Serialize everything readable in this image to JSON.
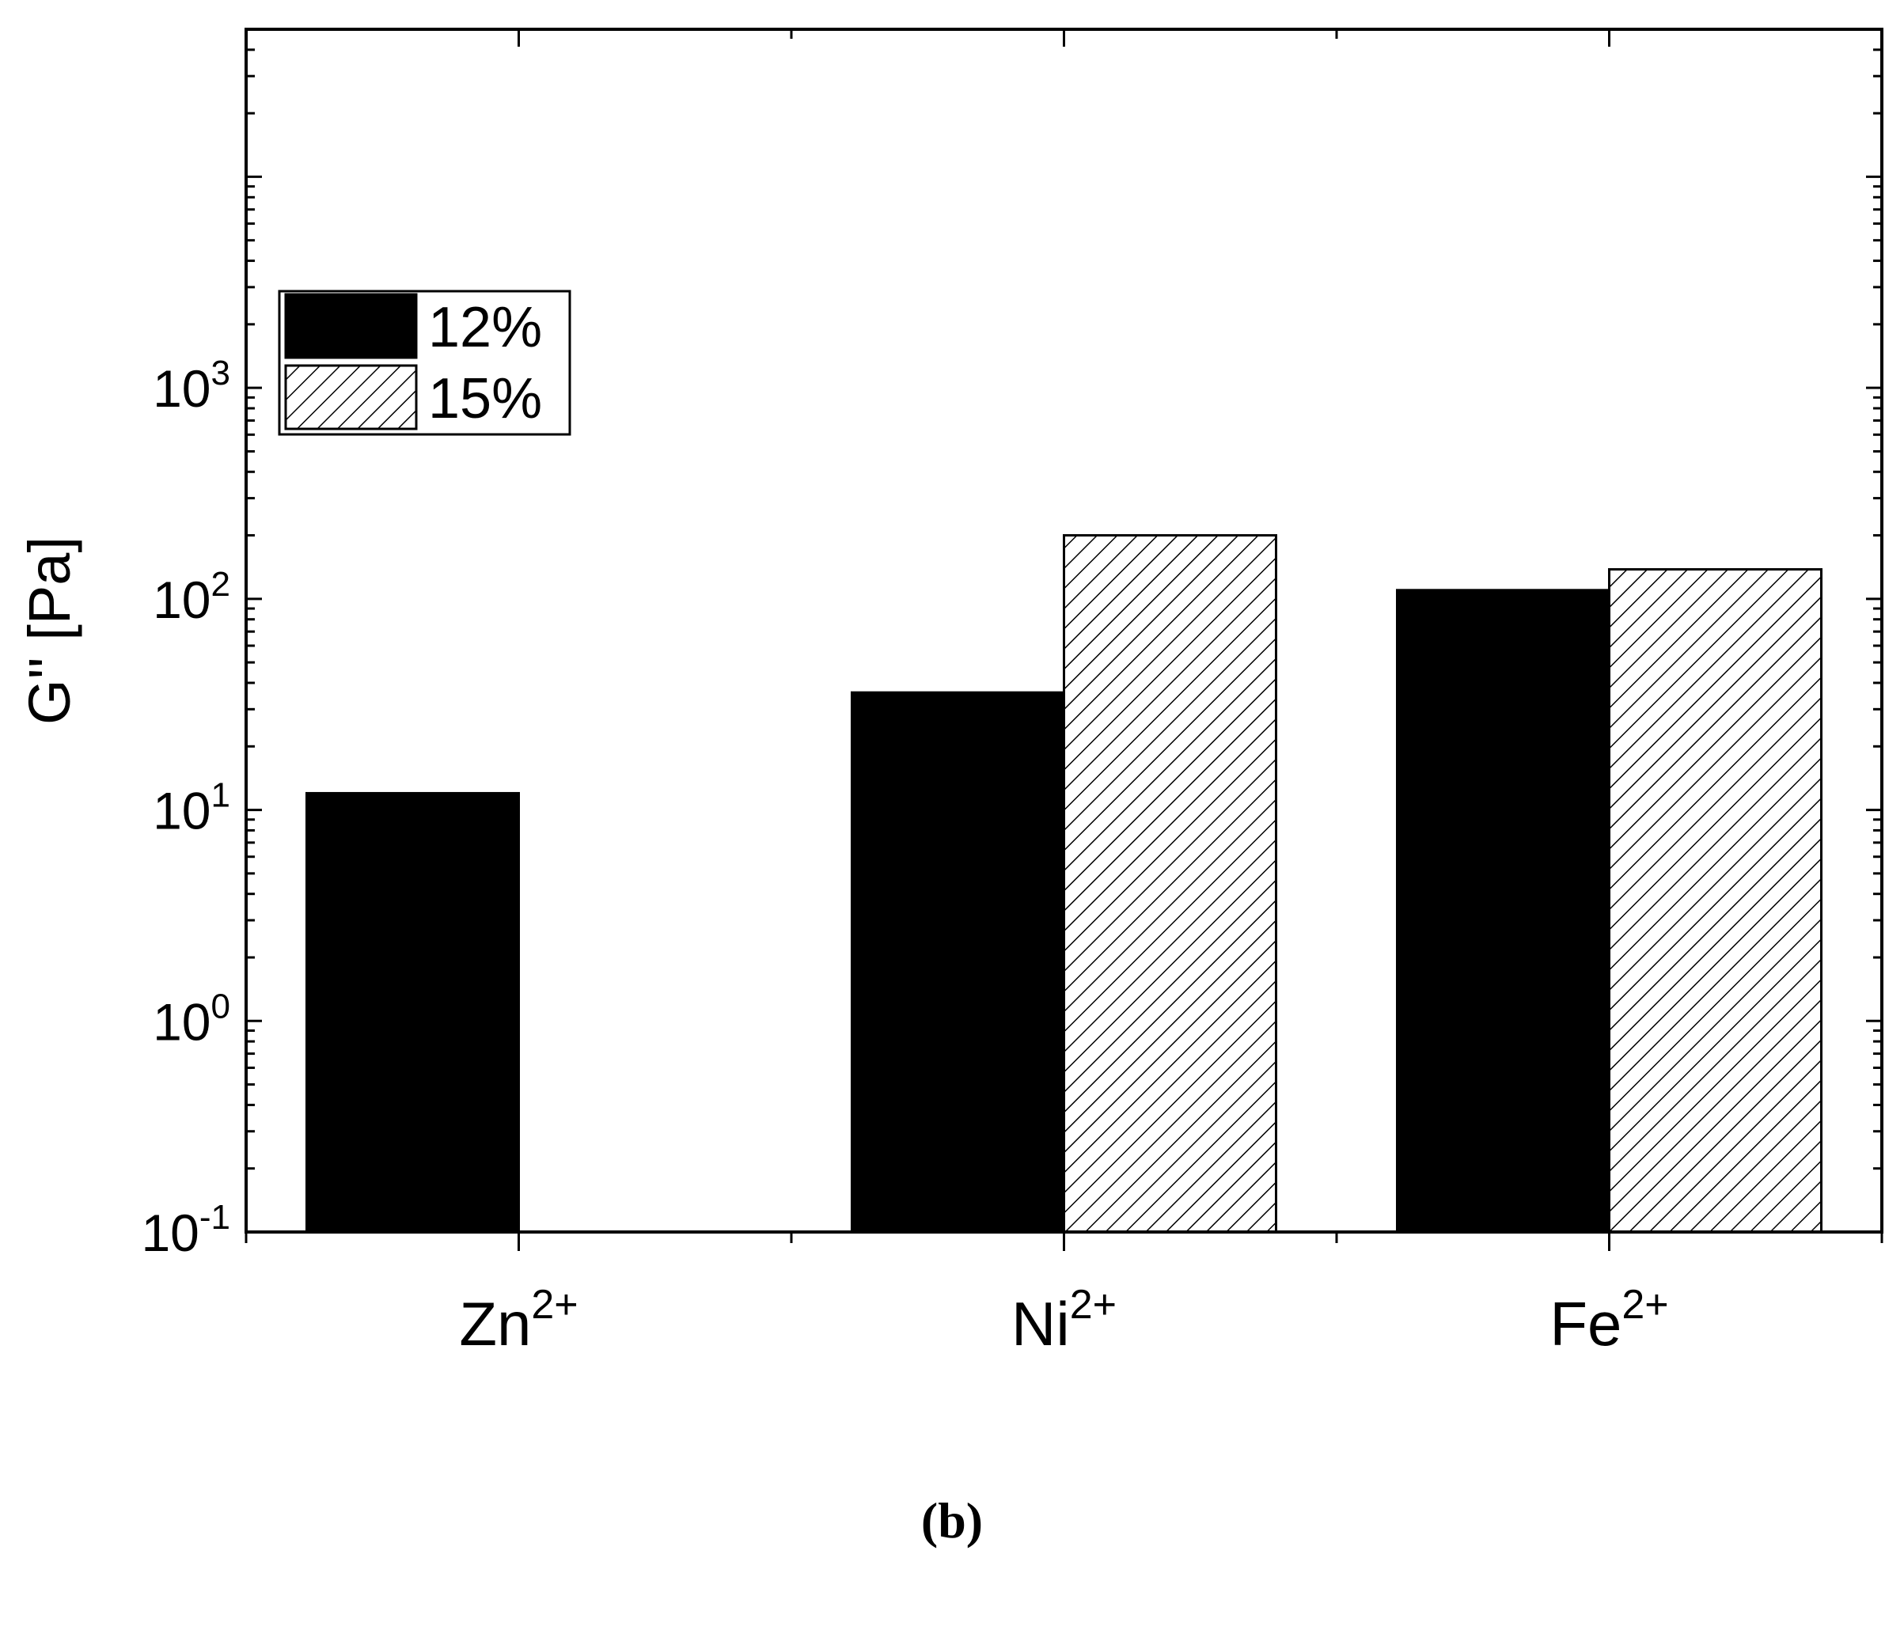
{
  "panel_label": "(b)",
  "chart_data": {
    "type": "bar",
    "title": "",
    "xlabel": "",
    "ylabel": "G'' [Pa]",
    "yscale": "log",
    "ylim": [
      0.1,
      50000
    ],
    "categories": [
      {
        "base": "Zn",
        "sup": "2+"
      },
      {
        "base": "Ni",
        "sup": "2+"
      },
      {
        "base": "Fe",
        "sup": "2+"
      }
    ],
    "yticks": [
      {
        "value": 0.1,
        "base": "10",
        "exp": "-1"
      },
      {
        "value": 1,
        "base": "10",
        "exp": "0"
      },
      {
        "value": 10,
        "base": "10",
        "exp": "1"
      },
      {
        "value": 100,
        "base": "10",
        "exp": "2"
      },
      {
        "value": 1000,
        "base": "10",
        "exp": "3"
      }
    ],
    "series": [
      {
        "name": "12%",
        "fill": "solid",
        "color": "#000000",
        "values": [
          12,
          36,
          110
        ]
      },
      {
        "name": "15%",
        "fill": "hatched",
        "color": "#000000",
        "values": [
          null,
          200,
          138
        ]
      }
    ],
    "legend_position": "upper-left",
    "grid": false
  }
}
